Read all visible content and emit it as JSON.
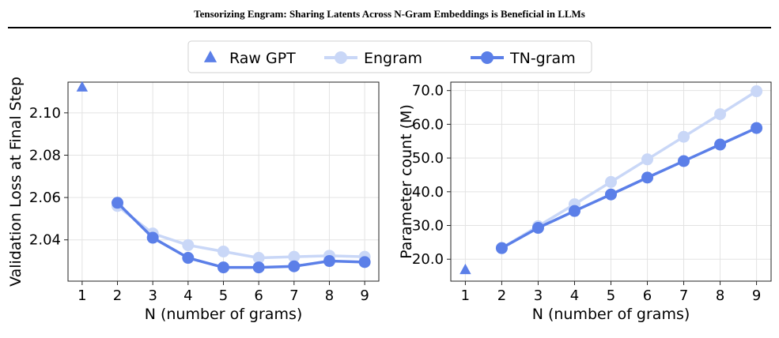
{
  "header": {
    "title": "Tensorizing Engram: Sharing Latents Across N-Gram Embeddings is Beneficial in LLMs"
  },
  "legend": {
    "placement": "top-center",
    "entries": [
      {
        "label": "Raw GPT",
        "marker": "triangle",
        "color": "#5b7fe8"
      },
      {
        "label": "Engram",
        "marker": "circle-line",
        "color": "#c9d7f7"
      },
      {
        "label": "TN-gram",
        "marker": "circle-line",
        "color": "#5b7fe8"
      }
    ]
  },
  "colors": {
    "raw": "#5b7fe8",
    "engram": "#c9d7f7",
    "tngram": "#5b7fe8",
    "grid": "#e3e3e3"
  },
  "chart_data": [
    {
      "type": "line",
      "xlabel": "N (number of grams)",
      "ylabel": "Validation Loss at Final Step",
      "xlim": [
        0.6,
        9.4
      ],
      "ylim": [
        2.0205,
        2.1145
      ],
      "xticks": [
        "1",
        "2",
        "3",
        "4",
        "5",
        "6",
        "7",
        "8",
        "9"
      ],
      "yticks": [
        "2.04",
        "2.06",
        "2.08",
        "2.10"
      ],
      "grid": true,
      "series": [
        {
          "name": "Raw GPT",
          "x": [
            1
          ],
          "y": [
            2.112
          ]
        },
        {
          "name": "Engram",
          "x": [
            2,
            3,
            4,
            5,
            6,
            7,
            8,
            9
          ],
          "y": [
            2.056,
            2.043,
            2.0375,
            2.0345,
            2.0315,
            2.032,
            2.0325,
            2.032
          ]
        },
        {
          "name": "TN-gram",
          "x": [
            2,
            3,
            4,
            5,
            6,
            7,
            8,
            9
          ],
          "y": [
            2.0575,
            2.041,
            2.0315,
            2.027,
            2.027,
            2.0275,
            2.03,
            2.0295
          ]
        }
      ]
    },
    {
      "type": "line",
      "xlabel": "N (number of grams)",
      "ylabel": "Parameter count (M)",
      "xlim": [
        0.6,
        9.4
      ],
      "ylim": [
        13.5,
        72.5
      ],
      "xticks": [
        "1",
        "2",
        "3",
        "4",
        "5",
        "6",
        "7",
        "8",
        "9"
      ],
      "yticks": [
        "20.0",
        "30.0",
        "40.0",
        "50.0",
        "60.0",
        "70.0"
      ],
      "grid": true,
      "series": [
        {
          "name": "Raw GPT",
          "x": [
            1
          ],
          "y": [
            16.8
          ]
        },
        {
          "name": "Engram",
          "x": [
            2,
            3,
            4,
            5,
            6,
            7,
            8,
            9
          ],
          "y": [
            23.3,
            29.8,
            36.3,
            42.9,
            49.6,
            56.3,
            63.0,
            69.8
          ]
        },
        {
          "name": "TN-gram",
          "x": [
            2,
            3,
            4,
            5,
            6,
            7,
            8,
            9
          ],
          "y": [
            23.3,
            29.3,
            34.3,
            39.2,
            44.2,
            49.1,
            54.0,
            58.9
          ]
        }
      ]
    }
  ]
}
